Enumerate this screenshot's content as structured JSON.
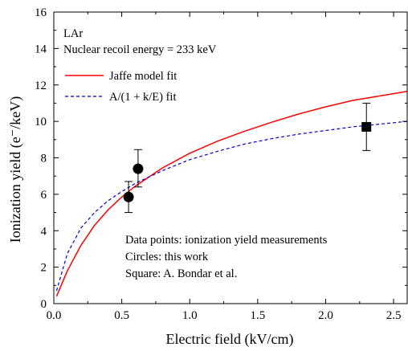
{
  "chart_data": {
    "type": "line",
    "xlabel": "Electric field (kV/cm)",
    "ylabel": "Ionization yield (e⁻/keV)",
    "xlim": [
      0,
      2.6
    ],
    "ylim": [
      0,
      16
    ],
    "x_ticks": [
      0,
      0.5,
      1.0,
      1.5,
      2.0,
      2.5
    ],
    "x_tick_labels": [
      "0.0",
      "0.5",
      "1.0",
      "1.5",
      "2.0",
      "2.5"
    ],
    "y_ticks": [
      0,
      2,
      4,
      6,
      8,
      10,
      12,
      14,
      16
    ],
    "y_tick_labels": [
      "0",
      "2",
      "4",
      "6",
      "8",
      "10",
      "12",
      "14",
      "16"
    ],
    "grid": false,
    "legend_position": "top-left",
    "annotations_top": [
      "LAr",
      "Nuclear recoil energy = 233 keV"
    ],
    "annotations_bottom": [
      "Data points: ionization yield measurements",
      "Circles: this work",
      "Square: A. Bondar et al."
    ],
    "series": [
      {
        "name": "Jaffe model fit",
        "kind": "line",
        "style": "solid",
        "color": "#ff0000",
        "x": [
          0.02,
          0.1,
          0.2,
          0.3,
          0.4,
          0.5,
          0.6,
          0.8,
          1.0,
          1.2,
          1.4,
          1.6,
          1.8,
          2.0,
          2.2,
          2.4,
          2.6
        ],
        "y": [
          0.4,
          1.8,
          3.2,
          4.3,
          5.15,
          5.85,
          6.45,
          7.45,
          8.25,
          8.9,
          9.45,
          9.95,
          10.4,
          10.8,
          11.15,
          11.4,
          11.65
        ]
      },
      {
        "name": "A/(1 + k/E) fit",
        "kind": "line",
        "style": "dashed",
        "color": "#0000cc",
        "x": [
          0.02,
          0.1,
          0.2,
          0.3,
          0.4,
          0.5,
          0.6,
          0.8,
          1.0,
          1.2,
          1.4,
          1.6,
          1.8,
          2.0,
          2.2,
          2.4,
          2.6
        ],
        "y": [
          0.7,
          2.75,
          4.15,
          5.0,
          5.65,
          6.15,
          6.6,
          7.3,
          7.9,
          8.35,
          8.75,
          9.05,
          9.3,
          9.5,
          9.7,
          9.85,
          10.0
        ]
      },
      {
        "kind": "points",
        "marker": "circle",
        "color": "#000000",
        "points": [
          {
            "x": 0.55,
            "y": 5.85,
            "err_low": 0.85,
            "err_high": 0.85
          },
          {
            "x": 0.62,
            "y": 7.4,
            "err_low": 1.0,
            "err_high": 1.05
          }
        ]
      },
      {
        "kind": "points",
        "marker": "square",
        "color": "#000000",
        "points": [
          {
            "x": 2.3,
            "y": 9.7,
            "err_low": 1.3,
            "err_high": 1.3
          }
        ]
      }
    ]
  }
}
